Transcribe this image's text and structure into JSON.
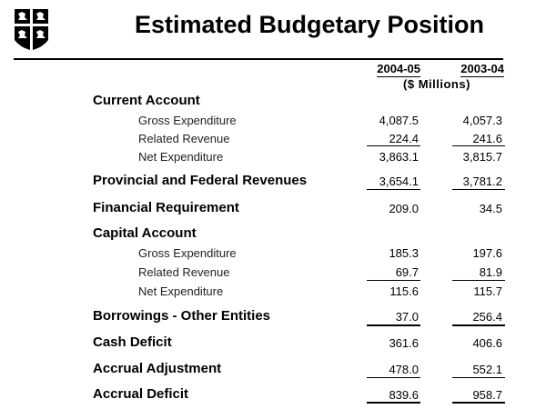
{
  "title": "Estimated Budgetary Position",
  "columns": [
    "2004-05",
    "2003-04"
  ],
  "units": "($ Millions)",
  "rows": [
    {
      "label": "Current Account",
      "type": "header",
      "values": [
        "",
        ""
      ]
    },
    {
      "label": "Gross Expenditure",
      "type": "sub",
      "values": [
        "4,087.5",
        "4,057.3"
      ]
    },
    {
      "label": "Related Revenue",
      "type": "sub",
      "values": [
        "224.4",
        "241.6"
      ]
    },
    {
      "label": "Net Expenditure",
      "type": "sub",
      "values": [
        "3,863.1",
        "3,815.7"
      ]
    },
    {
      "label": "Provincial and Federal Revenues",
      "type": "main",
      "values": [
        "3,654.1",
        "3,781.2"
      ]
    },
    {
      "label": "Financial Requirement",
      "type": "main",
      "values": [
        "209.0",
        "34.5"
      ]
    },
    {
      "label": "Capital Account",
      "type": "header",
      "values": [
        "",
        ""
      ]
    },
    {
      "label": "Gross Expenditure",
      "type": "sub",
      "values": [
        "185.3",
        "197.6"
      ]
    },
    {
      "label": "Related Revenue",
      "type": "sub",
      "values": [
        "69.7",
        "81.9"
      ]
    },
    {
      "label": "Net Expenditure",
      "type": "sub",
      "values": [
        "115.6",
        "115.7"
      ]
    },
    {
      "label": "Borrowings - Other Entities",
      "type": "main",
      "values": [
        "37.0",
        "256.4"
      ]
    },
    {
      "label": "Cash Deficit",
      "type": "main",
      "values": [
        "361.6",
        "406.6"
      ]
    },
    {
      "label": "Accrual Adjustment",
      "type": "main",
      "values": [
        "478.0",
        "552.1"
      ]
    },
    {
      "label": "Accrual Deficit",
      "type": "main",
      "values": [
        "839.6",
        "958.7"
      ]
    }
  ],
  "logo": "coat-of-arms shield"
}
